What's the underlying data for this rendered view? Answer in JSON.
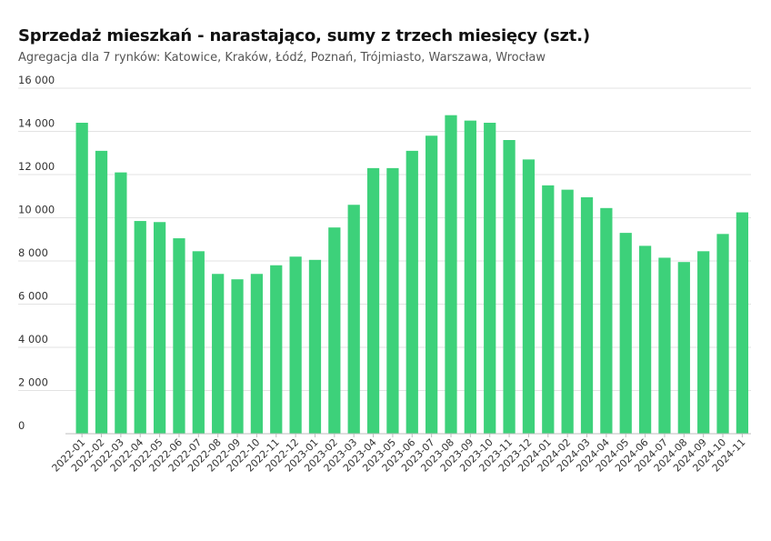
{
  "chart_data": {
    "type": "bar",
    "title": "Sprzedaż mieszkań - narastająco, sumy z trzech miesięcy (szt.)",
    "subtitle": "Agregacja dla 7 rynków: Katowice, Kraków, Łódź, Poznań, Trójmiasto, Warszawa, Wrocław",
    "xlabel": "",
    "ylabel": "",
    "ylim": [
      0,
      16000
    ],
    "yticks": [
      0,
      2000,
      4000,
      6000,
      8000,
      10000,
      12000,
      14000,
      16000
    ],
    "ytick_labels": [
      "0",
      "2 000",
      "4 000",
      "6 000",
      "8 000",
      "10 000",
      "12 000",
      "14 000",
      "16 000"
    ],
    "grid": true,
    "bar_color": "#3dd17a",
    "categories": [
      "2022-01",
      "2022-02",
      "2022-03",
      "2022-04",
      "2022-05",
      "2022-06",
      "2022-07",
      "2022-08",
      "2022-09",
      "2022-10",
      "2022-11",
      "2022-12",
      "2023-01",
      "2023-02",
      "2023-03",
      "2023-04",
      "2023-05",
      "2023-06",
      "2023-07",
      "2023-08",
      "2023-09",
      "2023-10",
      "2023-11",
      "2023-12",
      "2024-01",
      "2024-02",
      "2024-03",
      "2024-04",
      "2024-05",
      "2024-06",
      "2024-07",
      "2024-08",
      "2024-09",
      "2024-10",
      "2024-11"
    ],
    "values": [
      14400,
      13100,
      12100,
      9850,
      9800,
      9050,
      8450,
      7400,
      7150,
      7400,
      7800,
      8200,
      8050,
      9550,
      10600,
      12300,
      12300,
      13100,
      13800,
      14750,
      14500,
      14400,
      13600,
      12700,
      11500,
      11300,
      10950,
      10450,
      9300,
      8700,
      8150,
      7950,
      8450,
      9250,
      10250
    ]
  }
}
